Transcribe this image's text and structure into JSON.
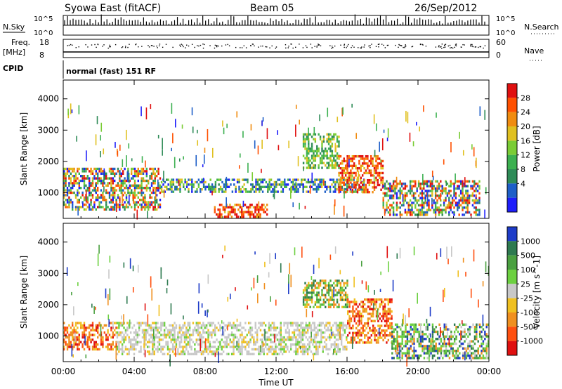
{
  "header": {
    "station": "Syowa East (fitACF)",
    "beam": "Beam 05",
    "date": "26/Sep/2012"
  },
  "status_labels": {
    "nsky": "N.Sky",
    "nsearch": "N.Search",
    "freq": "Freq.",
    "freq_unit": "[MHz]",
    "nave": "Nave",
    "cpid": "CPID",
    "cpid_value": "normal (fast) 151 RF",
    "nsky_top": "10^5",
    "nsky_bottom": "10^0",
    "freq_top": "18",
    "freq_bottom": "8",
    "nave_top": "60",
    "nave_bottom": "0"
  },
  "chart_data": [
    {
      "type": "heatmap",
      "panel": "power",
      "ylabel": "Slant Range [km]",
      "yticks": [
        1000,
        2000,
        3000,
        4000
      ],
      "ylim": [
        180,
        4600
      ],
      "xlim": [
        0,
        24
      ],
      "colorbar_label": "Power [dB]",
      "colorbar_ticks": [
        4,
        8,
        12,
        16,
        20,
        24,
        28
      ],
      "colorbar_colors": [
        "#1e1efa",
        "#1e5fc8",
        "#2e8b57",
        "#3cb050",
        "#7acc35",
        "#e0c020",
        "#f08c10",
        "#ff5000",
        "#e01010"
      ],
      "bands": [
        {
          "t0": 0.0,
          "t1": 5.5,
          "r0": 450,
          "r1": 1800,
          "level": "mixed-high"
        },
        {
          "t0": 5.5,
          "t1": 17.0,
          "r0": 1000,
          "r1": 1450,
          "level": "mixed-mid"
        },
        {
          "t0": 8.5,
          "t1": 11.5,
          "r0": 250,
          "r1": 650,
          "level": "high"
        },
        {
          "t0": 13.5,
          "t1": 15.5,
          "r0": 1800,
          "r1": 2900,
          "level": "mid"
        },
        {
          "t0": 15.5,
          "t1": 18.0,
          "r0": 1000,
          "r1": 2200,
          "level": "high"
        },
        {
          "t0": 18.0,
          "t1": 23.5,
          "r0": 300,
          "r1": 1400,
          "level": "mixed-high"
        }
      ]
    },
    {
      "type": "heatmap",
      "panel": "velocity",
      "ylabel": "Slant Range [km]",
      "xlabel": "Time UT",
      "yticks": [
        1000,
        2000,
        3000,
        4000
      ],
      "ylim": [
        180,
        4600
      ],
      "xlim": [
        0,
        24
      ],
      "xticks": [
        "00:00",
        "04:00",
        "08:00",
        "12:00",
        "16:00",
        "20:00",
        "00:00"
      ],
      "colorbar_label": "Velocity [m s^-1]",
      "colorbar_ticks": [
        1000,
        500,
        100,
        25,
        -25,
        -100,
        -500,
        -1000
      ],
      "colorbar_colors": [
        "#1e3cc8",
        "#2e7a50",
        "#4aa040",
        "#6cd040",
        "#c8c8c8",
        "#f0c020",
        "#f09020",
        "#ff5010",
        "#e01010"
      ],
      "bands": [
        {
          "t0": 0.0,
          "t1": 3.0,
          "r0": 550,
          "r1": 1450,
          "level": "negative"
        },
        {
          "t0": 3.0,
          "t1": 16.0,
          "r0": 450,
          "r1": 1450,
          "level": "near-zero"
        },
        {
          "t0": 13.5,
          "t1": 16.0,
          "r0": 1900,
          "r1": 2800,
          "level": "mixed"
        },
        {
          "t0": 16.0,
          "t1": 18.5,
          "r0": 800,
          "r1": 2200,
          "level": "negative"
        },
        {
          "t0": 18.5,
          "t1": 24.0,
          "r0": 300,
          "r1": 1400,
          "level": "positive"
        }
      ]
    }
  ]
}
